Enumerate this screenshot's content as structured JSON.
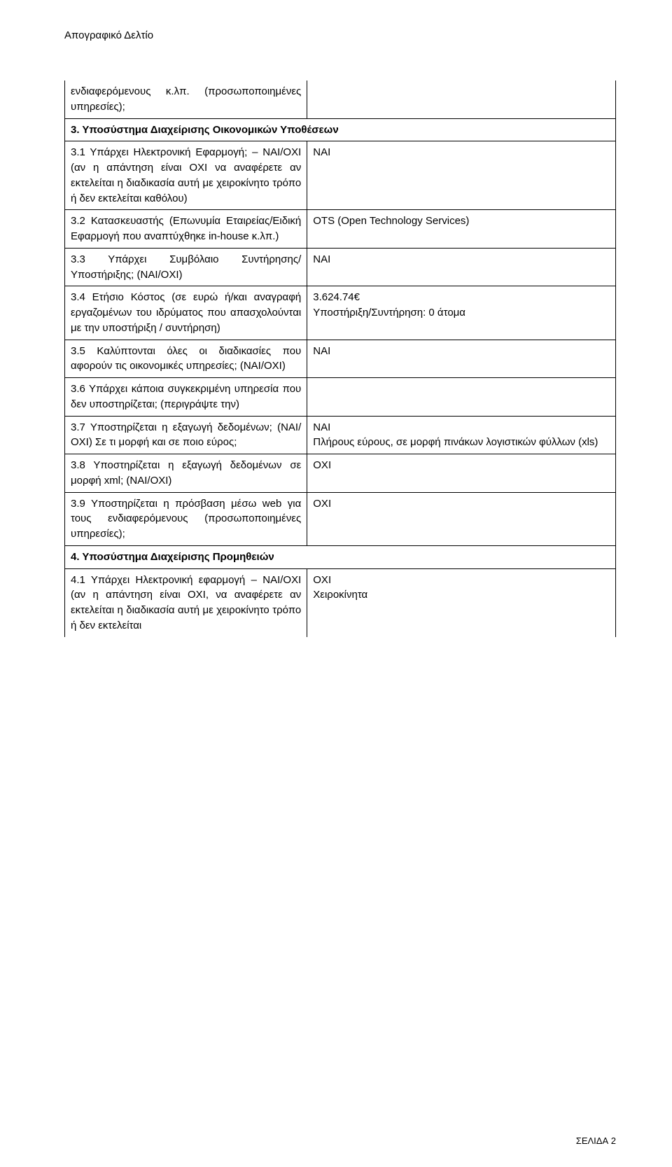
{
  "header": "Απογραφικό Δελτίο",
  "rows": [
    {
      "l": "ενδιαφερόμενους κ.λπ. (προσωποποιημένες υπηρεσίες);",
      "r": "",
      "lNoTop": true,
      "rNoTop": true
    },
    {
      "section": true,
      "l": "3. Υποσύστημα Διαχείρισης Οικονομικών Υποθέσεων"
    },
    {
      "l": "3.1 Υπάρχει Ηλεκτρονική Εφαρμογή; – ΝΑΙ/ΟΧΙ (αν η απάντηση είναι ΟΧΙ να αναφέρετε αν εκτελείται η διαδικασία αυτή με χειροκίνητο τρόπο ή δεν εκτελείται καθόλου)",
      "r": "ΝΑΙ"
    },
    {
      "l": "3.2 Κατασκευαστής (Επωνυμία Εταιρείας/Ειδική Εφαρμογή που αναπτύχθηκε in-house κ.λπ.)",
      "r": "OTS (Open Technology Services)"
    },
    {
      "l": "3.3 Υπάρχει Συμβόλαιο Συντήρησης/ Υποστήριξης; (ΝΑΙ/ΟΧΙ)",
      "r": "ΝΑΙ"
    },
    {
      "l": "3.4 Ετήσιο Κόστος (σε ευρώ ή/και αναγραφή εργαζομένων του ιδρύματος που απασχολούνται με την υποστήριξη / συντήρηση)",
      "r": "3.624.74€\nΥποστήριξη/Συντήρηση: 0 άτομα"
    },
    {
      "l": "3.5 Καλύπτονται όλες οι διαδικασίες που αφορούν τις οικονομικές υπηρεσίες; (ΝΑΙ/ΟΧΙ)",
      "r": "ΝΑΙ"
    },
    {
      "l": "3.6 Υπάρχει κάποια συγκεκριμένη υπηρεσία που δεν υποστηρίζεται; (περιγράψτε την)",
      "r": ""
    },
    {
      "l": "3.7 Υποστηρίζεται η εξαγωγή δεδομένων; (ΝΑΙ/ΟΧΙ) Σε τι μορφή και σε ποιο εύρος;",
      "r": "ΝΑΙ\nΠλήρους εύρους, σε μορφή πινάκων λογιστικών φύλλων (xls)"
    },
    {
      "l": "3.8 Υποστηρίζεται η εξαγωγή δεδομένων σε μορφή xml; (ΝΑΙ/ΟΧΙ)",
      "r": "ΟΧΙ"
    },
    {
      "l": "3.9 Υποστηρίζεται η πρόσβαση μέσω web για τους ενδιαφερόμενους (προσωποποιημένες υπηρεσίες);",
      "r": "ΟΧΙ"
    },
    {
      "section": true,
      "l": "4. Υποσύστημα Διαχείρισης Προμηθειών"
    },
    {
      "l": "4.1 Υπάρχει Ηλεκτρονική εφαρμογή – ΝΑΙ/ΟΧΙ (αν η απάντηση είναι ΟΧΙ, να αναφέρετε αν εκτελείται η διαδικασία αυτή με χειροκίνητο τρόπο ή δεν εκτελείται",
      "r": "ΟΧΙ\nΧειροκίνητα",
      "lNoBottom": true,
      "rNoBottom": true
    }
  ],
  "footer": {
    "label": "ΣΕΛΙΔΑ",
    "page": "2"
  }
}
